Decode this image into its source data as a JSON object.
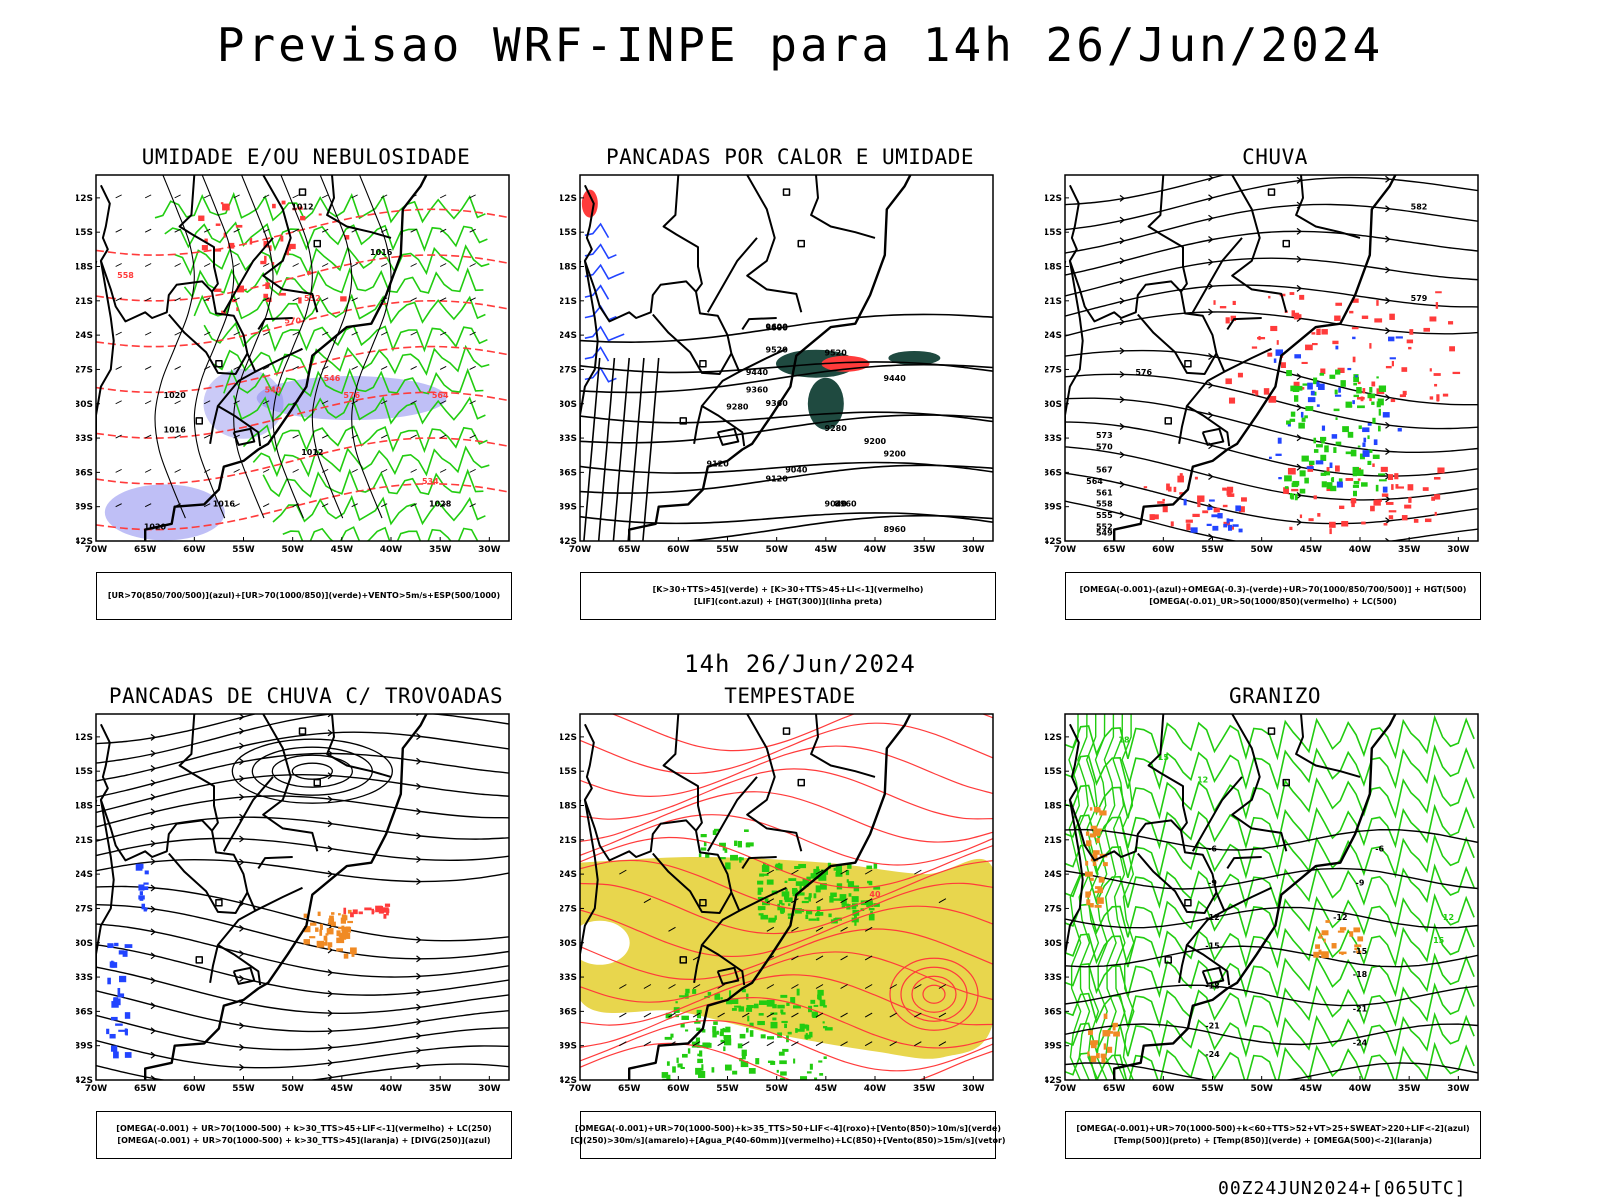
{
  "main_title": "Previsao WRF-INPE  para 14h 26/Jun/2024",
  "mid_time": "14h 26/Jun/2024",
  "footer_stamp": "00Z24JUN2024+[065UTC]",
  "axes": {
    "lat_ticks": [
      "12S",
      "15S",
      "18S",
      "21S",
      "24S",
      "27S",
      "30S",
      "33S",
      "36S",
      "39S",
      "42S"
    ],
    "lon_ticks": [
      "70W",
      "65W",
      "60W",
      "55W",
      "50W",
      "45W",
      "40W",
      "35W",
      "30W"
    ]
  },
  "colors": {
    "coast": "#000000",
    "red": "#ff3b3b",
    "green": "#22cc11",
    "blue": "#2244ff",
    "purple_shade": "#8a8aee",
    "dark_teal": "#1f4a40",
    "yellow": "#e6d23a",
    "orange": "#f08a24"
  },
  "panels": [
    {
      "title": "UMIDADE E/OU NEBULOSIDADE",
      "legend": [
        "[UR>70(850/700/500)](azul)+[UR>70(1000/850)](verde)+VENTO>5m/s+ESP(500/1000)"
      ],
      "labels": [
        "1012",
        "1016",
        "1016",
        "1020",
        "1020",
        "1016",
        "1012",
        "576",
        "570",
        "564",
        "558",
        "552",
        "546",
        "540",
        "534",
        "1028"
      ]
    },
    {
      "title": "PANCADAS POR CALOR E UMIDADE",
      "legend": [
        "[K>30+TTS>45](verde) + [K>30+TTS>45+LI<-1](vermelho)",
        "[LIF](cont.azul) + [HGT(300)](linha preta)"
      ],
      "labels": [
        "9600",
        "9520",
        "9440",
        "9360",
        "9280",
        "9200",
        "9120",
        "9040",
        "8960",
        "9600",
        "9520",
        "9440",
        "9360",
        "9280",
        "9200",
        "9120",
        "9040",
        "8960"
      ]
    },
    {
      "title": "CHUVA",
      "legend": [
        "[OMEGA(-0.001)-(azul)+OMEGA(-0.3)-(verde)+UR>70(1000/850/700/500)] + HGT(500)",
        "[OMEGA(-0.01)_UR>50(1000/850)(vermelho) + LC(500)"
      ],
      "labels": [
        "576",
        "573",
        "570",
        "567",
        "564",
        "561",
        "558",
        "555",
        "552",
        "549",
        "582",
        "579"
      ]
    },
    {
      "title": "PANCADAS DE CHUVA C/ TROVOADAS",
      "legend": [
        "[OMEGA(-0.001) + UR>70(1000-500) + k>30_TTS>45+LIF<-1](vermelho) + LC(250)",
        "[OMEGA(-0.001) + UR>70(1000-500) + k>30_TTS>45](laranja) + [DIVG(250)](azul)"
      ],
      "labels": []
    },
    {
      "title": "TEMPESTADE",
      "legend": [
        "[OMEGA(-0.001)+UR>70(1000-500)+k>35_TTS>50+LIF<-4](roxo)+[Vento(850)>10m/s](verde)",
        "[CJ(250)>30m/s](amarelo)+[Agua_P(40-60mm)](vermelho)+LC(850)+[Vento(850)>15m/s](vetor)"
      ],
      "labels": [
        "40"
      ]
    },
    {
      "title": "GRANIZO",
      "legend": [
        "[OMEGA(-0.001)+UR>70(1000-500)+k<60+TTS>52+VT>25+SWEAT>220+LIF<-2](azul)",
        "[Temp(500)](preto) + [Temp(850)](verde) + [OMEGA(500)<-2](laranja)"
      ],
      "labels": [
        "-6",
        "-9",
        "-12",
        "-15",
        "-18",
        "-21",
        "-24",
        "-6",
        "-9",
        "-12",
        "-15",
        "-18",
        "-21",
        "-24",
        "12",
        "15",
        "18",
        "12",
        "15"
      ]
    }
  ]
}
